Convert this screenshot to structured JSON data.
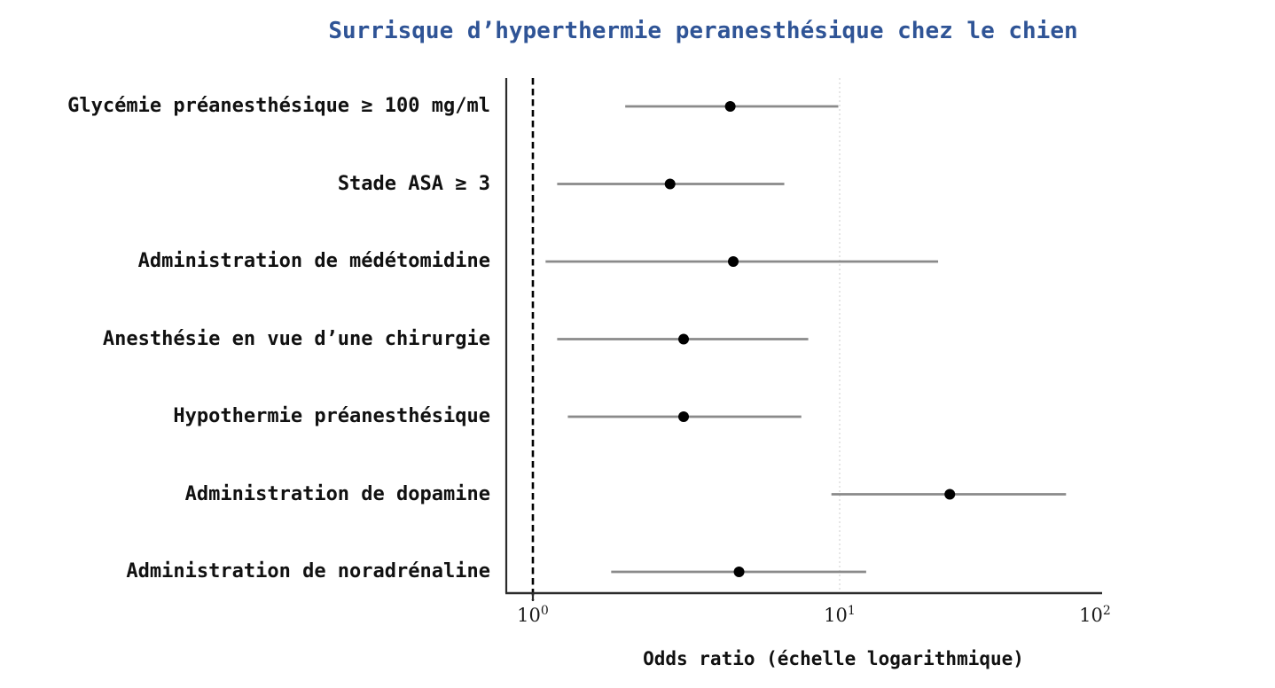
{
  "title": {
    "text": "Surrisque d’hyperthermie peranesthésique chez le chien",
    "color": "#2f5496"
  },
  "chart_data": {
    "type": "forest",
    "title": "Surrisque d’hyperthermie peranesthésique chez le chien",
    "xlabel": "Odds ratio (échelle logarithmique)",
    "x_scale": "log10",
    "xlim": [
      1,
      100
    ],
    "grid": "single dotted gridline at 10",
    "reference_line_value": 1,
    "gridline_value": 10,
    "x_ticks": [
      {
        "base": "10",
        "exp": "0",
        "value": 1
      },
      {
        "base": "10",
        "exp": "1",
        "value": 10
      },
      {
        "base": "10",
        "exp": "2",
        "value": 100
      }
    ],
    "rows": [
      {
        "label": "Glycémie préanesthésique ≥ 100 mg/ml",
        "or": 4.4,
        "ci_low": 2.0,
        "ci_high": 9.9
      },
      {
        "label": "Stade ASA ≥ 3",
        "or": 2.8,
        "ci_low": 1.2,
        "ci_high": 6.6
      },
      {
        "label": "Administration de médétomidine",
        "or": 4.5,
        "ci_low": 1.1,
        "ci_high": 24.3
      },
      {
        "label": "Anesthésie en vue d’une chirurgie",
        "or": 3.1,
        "ci_low": 1.2,
        "ci_high": 7.9
      },
      {
        "label": "Hypothermie préanesthésique",
        "or": 3.1,
        "ci_low": 1.3,
        "ci_high": 7.5
      },
      {
        "label": "Administration de dopamine",
        "or": 27.0,
        "ci_low": 9.4,
        "ci_high": 77.0
      },
      {
        "label": "Administration de noradrénaline",
        "or": 4.7,
        "ci_low": 1.8,
        "ci_high": 12.7
      }
    ],
    "colors": {
      "title": "#2f5496",
      "point": "#000000",
      "ci_bar": "#8a8a8a",
      "reference_line": "#000000",
      "gridline": "#e0e0e0",
      "axis": "#2b2b2b",
      "background": "#ffffff"
    }
  }
}
